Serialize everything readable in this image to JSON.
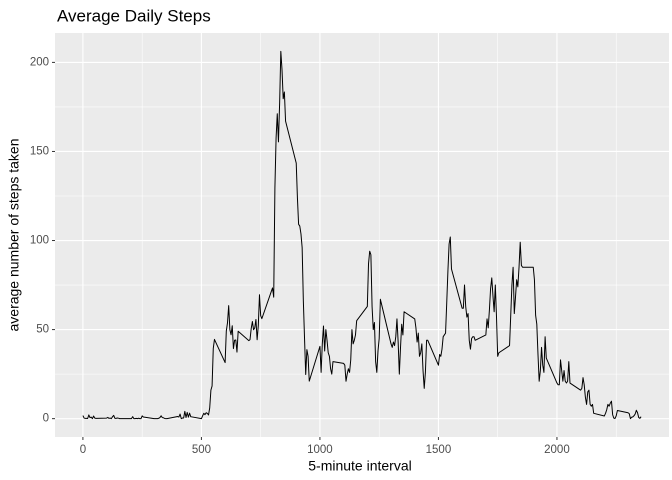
{
  "chart_data": {
    "type": "line",
    "title": "Average Daily Steps",
    "x_label": "5-minute interval",
    "y_label": "average number of steps taken",
    "color": "#000000",
    "grid": true,
    "xlim": [
      -117.75,
      2472.75
    ],
    "xticks": [
      0,
      500,
      1000,
      1500,
      2000
    ],
    "ylim": [
      -10.3,
      216.5
    ],
    "yticks": [
      0,
      50,
      100,
      150,
      200
    ],
    "x": [
      0,
      5,
      10,
      15,
      20,
      25,
      30,
      35,
      40,
      45,
      50,
      55,
      100,
      105,
      110,
      115,
      120,
      125,
      130,
      135,
      140,
      145,
      150,
      155,
      200,
      205,
      210,
      215,
      220,
      225,
      230,
      235,
      240,
      245,
      250,
      255,
      300,
      305,
      310,
      315,
      320,
      325,
      330,
      335,
      340,
      345,
      350,
      355,
      400,
      405,
      410,
      415,
      420,
      425,
      430,
      435,
      440,
      445,
      450,
      455,
      500,
      505,
      510,
      515,
      520,
      525,
      530,
      535,
      540,
      545,
      550,
      555,
      600,
      605,
      610,
      615,
      620,
      625,
      630,
      635,
      640,
      645,
      650,
      655,
      700,
      705,
      710,
      715,
      720,
      725,
      730,
      735,
      740,
      745,
      750,
      755,
      800,
      805,
      810,
      815,
      820,
      825,
      830,
      835,
      840,
      845,
      850,
      855,
      900,
      905,
      910,
      915,
      920,
      925,
      930,
      935,
      940,
      945,
      950,
      955,
      1000,
      1005,
      1010,
      1015,
      1020,
      1025,
      1030,
      1035,
      1040,
      1045,
      1050,
      1055,
      1100,
      1105,
      1110,
      1115,
      1120,
      1125,
      1130,
      1135,
      1140,
      1145,
      1150,
      1155,
      1200,
      1205,
      1210,
      1215,
      1220,
      1225,
      1230,
      1235,
      1240,
      1245,
      1250,
      1255,
      1300,
      1305,
      1310,
      1315,
      1320,
      1325,
      1330,
      1335,
      1340,
      1345,
      1350,
      1355,
      1400,
      1405,
      1410,
      1415,
      1420,
      1425,
      1430,
      1435,
      1440,
      1445,
      1450,
      1455,
      1500,
      1505,
      1510,
      1515,
      1520,
      1525,
      1530,
      1535,
      1540,
      1545,
      1550,
      1555,
      1600,
      1605,
      1610,
      1615,
      1620,
      1625,
      1630,
      1635,
      1640,
      1645,
      1650,
      1655,
      1700,
      1705,
      1710,
      1715,
      1720,
      1725,
      1730,
      1735,
      1740,
      1745,
      1750,
      1755,
      1800,
      1805,
      1810,
      1815,
      1820,
      1825,
      1830,
      1835,
      1840,
      1845,
      1850,
      1855,
      1900,
      1905,
      1910,
      1915,
      1920,
      1925,
      1930,
      1935,
      1940,
      1945,
      1950,
      1955,
      2000,
      2005,
      2010,
      2015,
      2020,
      2025,
      2030,
      2035,
      2040,
      2045,
      2050,
      2055,
      2100,
      2105,
      2110,
      2115,
      2120,
      2125,
      2130,
      2135,
      2140,
      2145,
      2150,
      2155,
      2200,
      2205,
      2210,
      2215,
      2220,
      2225,
      2230,
      2235,
      2240,
      2245,
      2250,
      2255,
      2300,
      2305,
      2310,
      2315,
      2320,
      2325,
      2330,
      2335,
      2340,
      2345,
      2350,
      2355
    ],
    "values": [
      1.72,
      0.34,
      0.13,
      0.15,
      0.08,
      2.09,
      0.53,
      0.87,
      0,
      1.47,
      0.3,
      0.13,
      0.32,
      0.68,
      0.15,
      0.34,
      0,
      1.11,
      1.83,
      0.17,
      0.17,
      0.38,
      0.26,
      0,
      0,
      0,
      1.13,
      0,
      0,
      0.13,
      0,
      0.23,
      0,
      0,
      1.55,
      0.94,
      0,
      0,
      0,
      0,
      0.21,
      0.62,
      1.62,
      0.58,
      0.49,
      0.08,
      0,
      0,
      1.19,
      0.94,
      2.57,
      0,
      0.34,
      0.36,
      4.11,
      0.66,
      3.49,
      0.83,
      3.11,
      1.11,
      0,
      1.57,
      3,
      2.25,
      3.32,
      2.96,
      2.09,
      6.06,
      16.02,
      18.34,
      39.45,
      44.49,
      31.49,
      49.26,
      53.77,
      63.45,
      49.96,
      47.08,
      52.15,
      39.34,
      44.02,
      44.17,
      37.36,
      49.04,
      43.81,
      44.38,
      50.51,
      54.51,
      49.92,
      50.98,
      55.68,
      44.32,
      52.26,
      69.55,
      57.85,
      56.15,
      73.38,
      68.21,
      129.43,
      157.53,
      171.15,
      155.4,
      177.3,
      206.17,
      195.92,
      179.57,
      183.4,
      167.02,
      143.45,
      124.04,
      109.11,
      108.11,
      103.72,
      95.97,
      66.21,
      45.23,
      24.79,
      38.75,
      34.98,
      21.06,
      40.57,
      26,
      42,
      52,
      38,
      50,
      44,
      37,
      35,
      28,
      25,
      32,
      31,
      30,
      21,
      25,
      28,
      26,
      33,
      50,
      42,
      44,
      47,
      55,
      63,
      87,
      94,
      92,
      63,
      50,
      54,
      32,
      26,
      38,
      45,
      67,
      42,
      40,
      43,
      41,
      46,
      56,
      43,
      25,
      40,
      53,
      47,
      60,
      56,
      51,
      43,
      48,
      35,
      37,
      42,
      27,
      17,
      26,
      44,
      44,
      30,
      36,
      35,
      39,
      46,
      47,
      48,
      65,
      83,
      98,
      102,
      84,
      62,
      62,
      75,
      63,
      57,
      59,
      44,
      39,
      45,
      46,
      46,
      44,
      47,
      56,
      51,
      61,
      73,
      79,
      69,
      60,
      75,
      57,
      35,
      37,
      41,
      58,
      75,
      85,
      59,
      68,
      78,
      74,
      85,
      99,
      86,
      85,
      85,
      78,
      58,
      53,
      36,
      21,
      27,
      40,
      30,
      26,
      46,
      34,
      20,
      19,
      19,
      33,
      27,
      21,
      27,
      21,
      20,
      21,
      32,
      20,
      16,
      17,
      23,
      19,
      12,
      8,
      15,
      16,
      8,
      7,
      8,
      3,
      1.5,
      3,
      5,
      8,
      7,
      8.7,
      9.8,
      2.2,
      0.3,
      0.1,
      1.6,
      4.6,
      3.3,
      2.8,
      0,
      0.8,
      1,
      1.6,
      2.6,
      4.7,
      3.3,
      0.6,
      0.2,
      1.1
    ]
  }
}
